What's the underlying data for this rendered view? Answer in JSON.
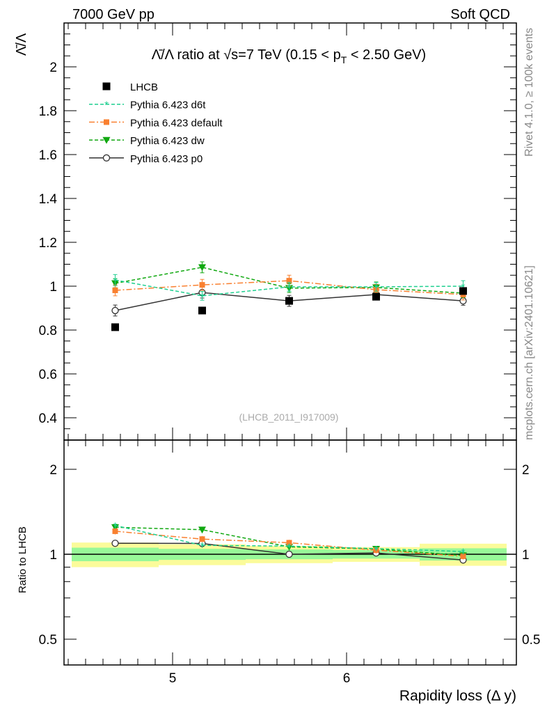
{
  "header": {
    "left": "7000 GeV pp",
    "right": "Soft QCD"
  },
  "side": {
    "rivet": "Rivet 4.1.0, ≥ 100k events",
    "mcplots": "mcplots.cern.ch [arXiv:2401.10621]"
  },
  "watermark": "(LHCB_2011_I917009)",
  "colors": {
    "LHCB": "#000000",
    "d6t": "#1ecf8f",
    "default": "#f98030",
    "dw": "#10a810",
    "p0": "#333333",
    "band_total": "#fbfb9a",
    "band_stat": "#98f898"
  },
  "chart_data": [
    {
      "type": "scatter",
      "title": "Λ̄/Λ ratio at √s=7 TeV (0.15 < p_T < 2.50 GeV)",
      "title_parts": {
        "pre": "Λ̄/Λ ratio at √s=7 TeV (0.15 < p",
        "sub": "T",
        "post": " < 2.50 GeV)"
      },
      "ylabel": "Λ̄/Λ",
      "xlabel": "",
      "xlim": [
        4.376,
        6.976
      ],
      "ylim": [
        0.3,
        2.2
      ],
      "yticks": [
        "0.4",
        "0.6",
        "0.8",
        "1",
        "1.2",
        "1.4",
        "1.6",
        "1.8",
        "2"
      ],
      "bin_edges": [
        4.42,
        4.92,
        5.42,
        5.92,
        6.42,
        6.92
      ],
      "x": [
        4.67,
        5.17,
        5.67,
        6.17,
        6.67
      ],
      "legend_position": "top-left",
      "series": [
        {
          "key": "LHCB",
          "name": "LHCB",
          "values": [
            0.813,
            0.889,
            0.933,
            0.952,
            0.978
          ],
          "errors": [
            0.005,
            0.005,
            0.006,
            0.006,
            0.008
          ],
          "style": "marker"
        },
        {
          "key": "d6t",
          "name": "Pythia 6.423 d6t",
          "values": [
            1.028,
            0.956,
            0.997,
            0.997,
            1.0
          ],
          "errors": [
            0.025,
            0.02,
            0.02,
            0.02,
            0.025
          ],
          "style": "dashed"
        },
        {
          "key": "default",
          "name": "Pythia 6.423 default",
          "values": [
            0.981,
            1.006,
            1.025,
            0.984,
            0.962
          ],
          "errors": [
            0.025,
            0.025,
            0.025,
            0.025,
            0.025
          ],
          "style": "dashdot"
        },
        {
          "key": "dw",
          "name": "Pythia 6.423 dw",
          "values": [
            1.013,
            1.086,
            0.991,
            0.994,
            0.968
          ],
          "errors": [
            0.02,
            0.025,
            0.02,
            0.025,
            0.02
          ],
          "style": "dashed"
        },
        {
          "key": "p0",
          "name": "Pythia 6.423 p0",
          "values": [
            0.889,
            0.971,
            0.933,
            0.962,
            0.933
          ],
          "errors": [
            0.025,
            0.025,
            0.025,
            0.02,
            0.02
          ],
          "style": "solid"
        }
      ]
    },
    {
      "type": "scatter",
      "title": "",
      "ylabel": "Ratio to LHCB",
      "xlabel": "Rapidity loss (Δ y)",
      "yscale": "log",
      "ylim": [
        0.406,
        2.54
      ],
      "yticks": [
        "0.5",
        "1",
        "2"
      ],
      "xticks": [
        "5",
        "6"
      ],
      "band_total_rel": [
        0.1,
        0.085,
        0.07,
        0.06,
        0.09
      ],
      "band_stat_rel": [
        0.055,
        0.045,
        0.04,
        0.035,
        0.05
      ]
    }
  ]
}
